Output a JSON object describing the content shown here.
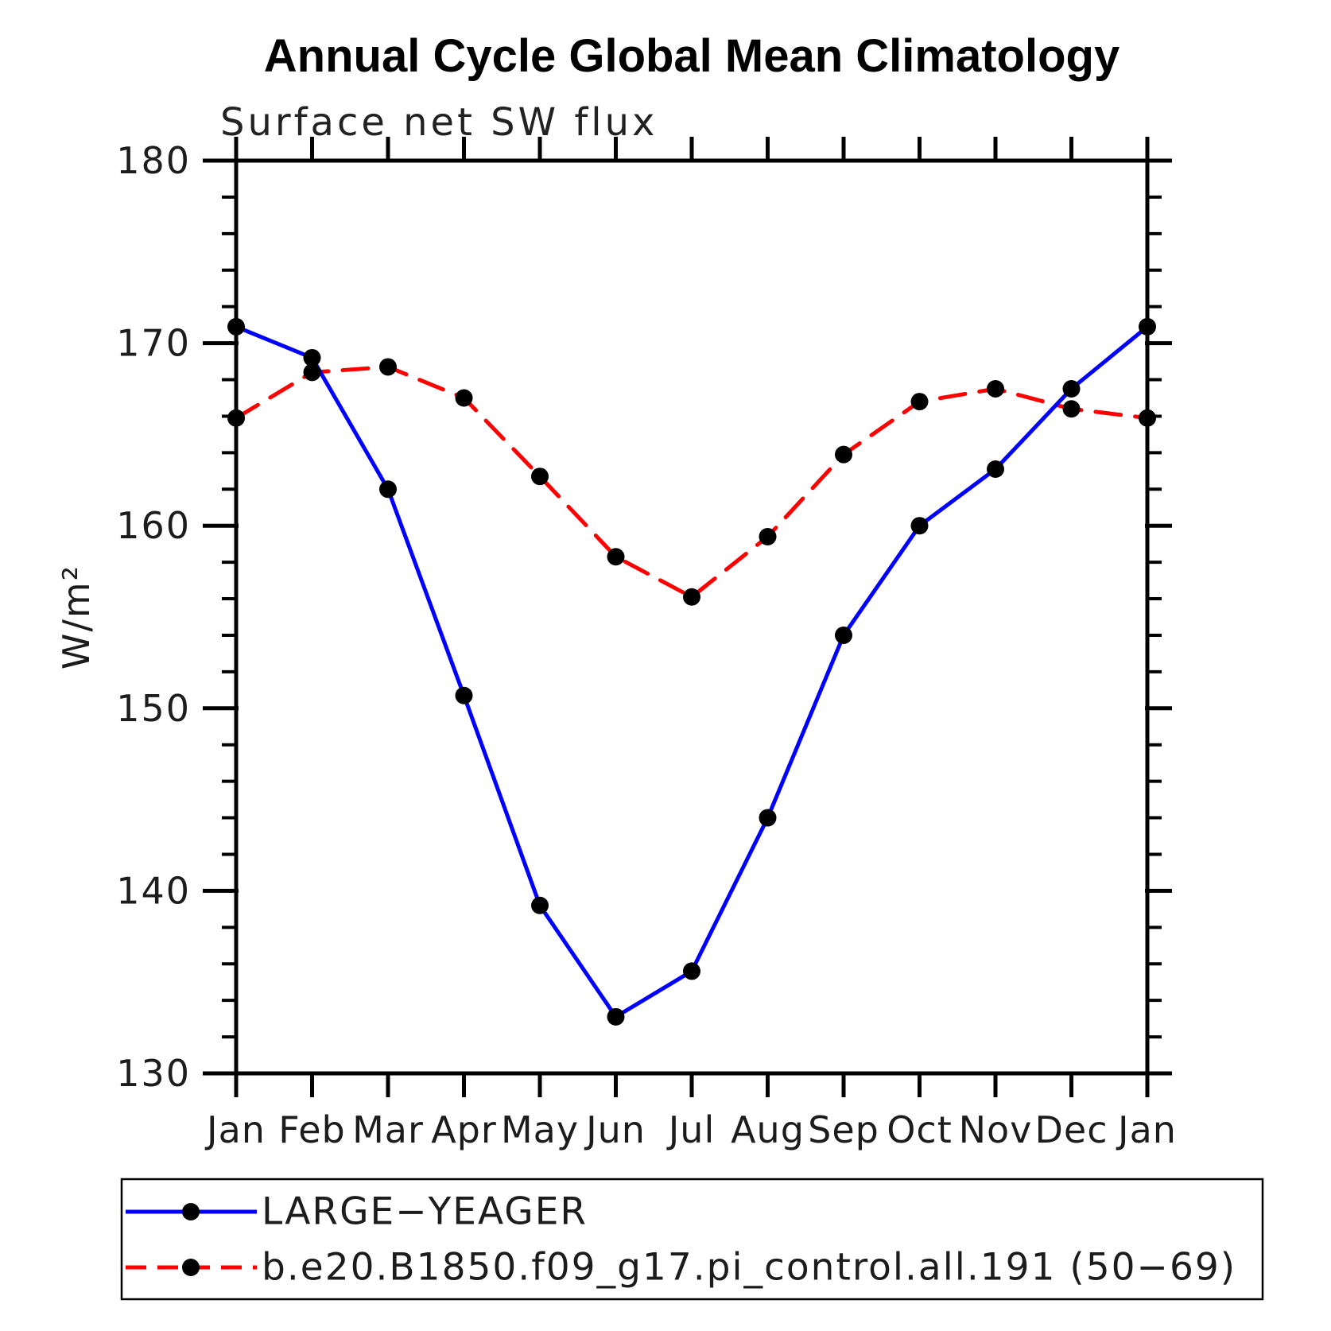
{
  "title": "Annual Cycle Global Mean Climatology",
  "subtitle": "Surface net SW flux",
  "colors": {
    "series1": "#0000ff",
    "series2": "#ff0000",
    "marker": "#000000",
    "axis": "#000000"
  },
  "chart_data": {
    "type": "line",
    "title": "Annual Cycle Global Mean Climatology",
    "subtitle": "Surface net SW flux",
    "xlabel": "",
    "ylabel": "W/m²",
    "ylim": [
      130,
      180
    ],
    "y_major_ticks": [
      130,
      140,
      150,
      160,
      170,
      180
    ],
    "y_minor_step": 2,
    "grid": false,
    "legend_position": "bottom",
    "categories": [
      "Jan",
      "Feb",
      "Mar",
      "Apr",
      "May",
      "Jun",
      "Jul",
      "Aug",
      "Sep",
      "Oct",
      "Nov",
      "Dec",
      "Jan"
    ],
    "series": [
      {
        "name": "LARGE−YEAGER",
        "color": "#0000ff",
        "style": "solid",
        "marker": "circle",
        "marker_color": "#000000",
        "values": [
          170.9,
          169.2,
          162.0,
          150.7,
          139.2,
          133.1,
          135.6,
          144.0,
          154.0,
          160.0,
          163.1,
          167.5,
          170.9
        ]
      },
      {
        "name": "b.e20.B1850.f09_g17.pi_control.all.191 (50−69)",
        "color": "#ff0000",
        "style": "dashed",
        "marker": "circle",
        "marker_color": "#000000",
        "values": [
          165.9,
          168.4,
          168.7,
          167.0,
          162.7,
          158.3,
          156.1,
          159.4,
          163.9,
          166.8,
          167.5,
          166.4,
          165.9
        ]
      }
    ]
  }
}
